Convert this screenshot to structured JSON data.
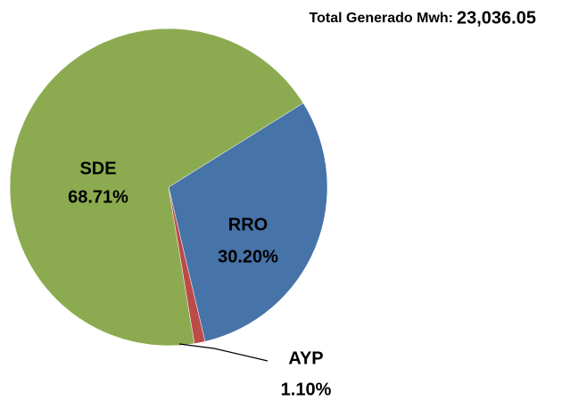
{
  "chart_data": {
    "type": "pie",
    "title": "Total Generado Mwh:",
    "total": "23,036.05",
    "categories": [
      "RRO",
      "AYP",
      "SDE"
    ],
    "values": [
      30.2,
      1.1,
      68.71
    ],
    "value_labels": [
      "30.20%",
      "1.10%",
      "68.71%"
    ],
    "colors": [
      "#4673a8",
      "#bc4b48",
      "#8cab50"
    ]
  }
}
